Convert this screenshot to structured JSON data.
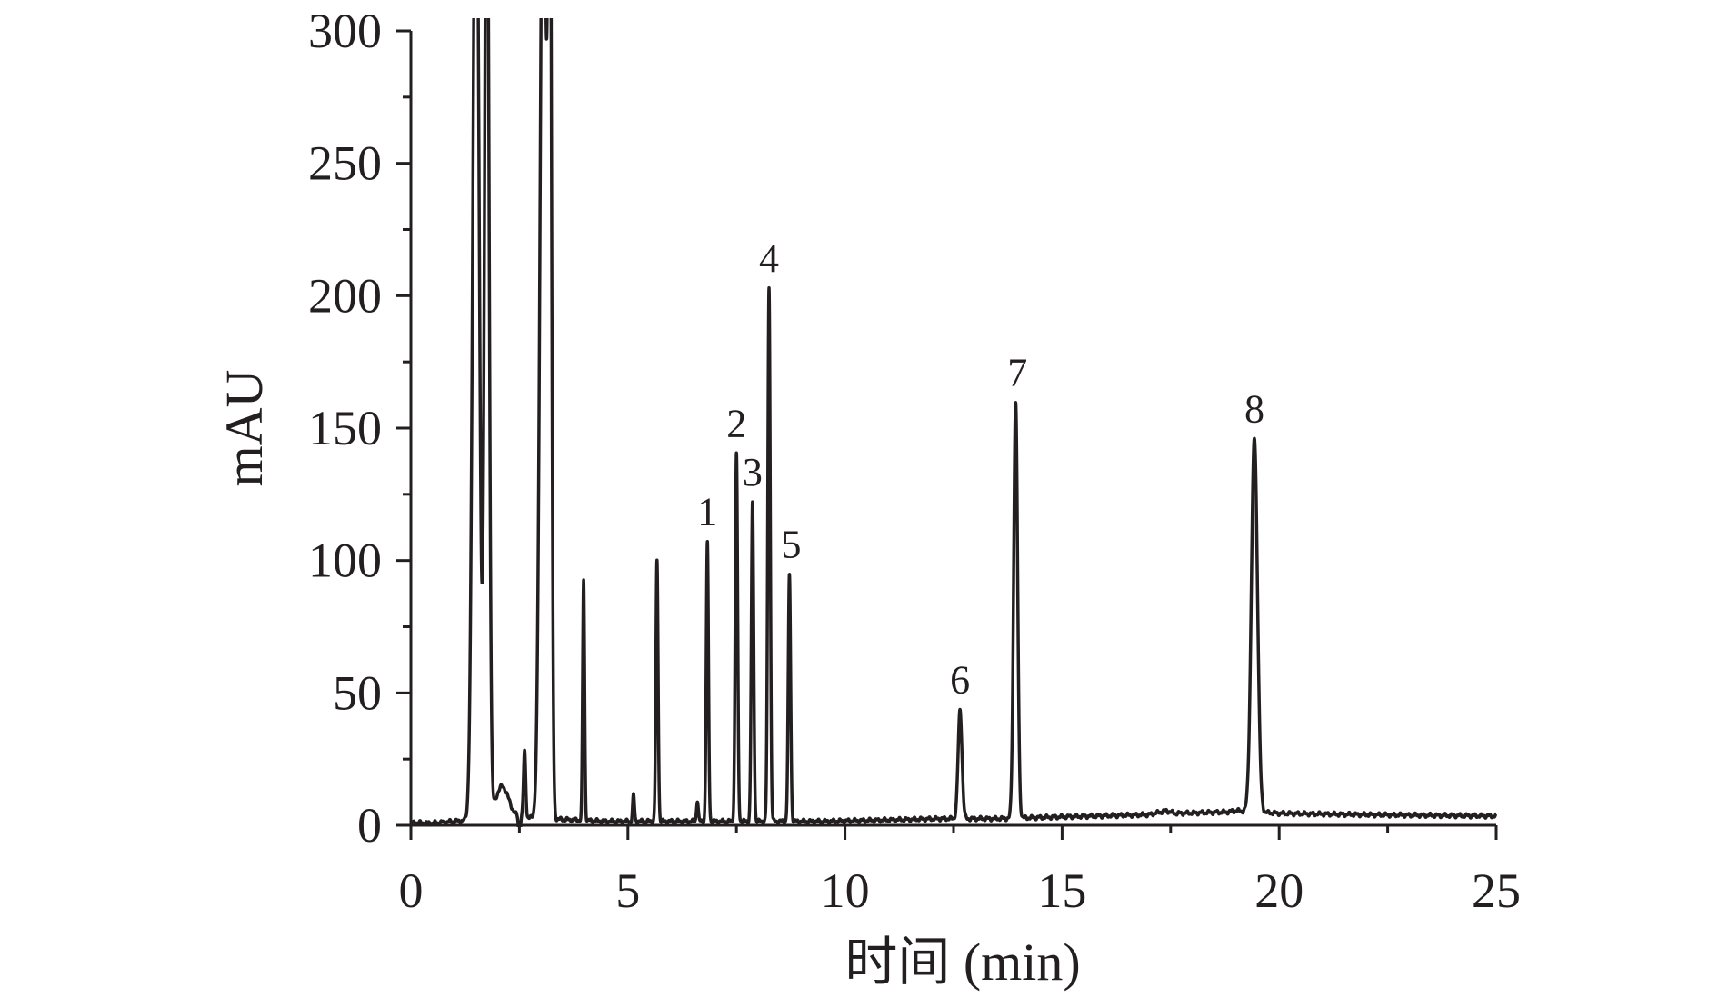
{
  "chart_data": {
    "type": "line",
    "title": "",
    "xlabel": "时间 (min)",
    "ylabel": "mAU",
    "xlim": [
      0,
      25
    ],
    "ylim": [
      0,
      300
    ],
    "x_major_ticks": [
      0,
      5,
      10,
      15,
      20,
      25
    ],
    "x_minor_step": 2.5,
    "y_major_ticks": [
      0,
      50,
      100,
      150,
      200,
      250,
      300
    ],
    "y_minor_step": 25,
    "grid": false,
    "legend": "none",
    "line_color": "#231f20",
    "baseline": [
      [
        0,
        1
      ],
      [
        0.5,
        0.8
      ],
      [
        1.0,
        1.5
      ],
      [
        2.4,
        3
      ],
      [
        4.5,
        1.5
      ],
      [
        8.0,
        1.5
      ],
      [
        9.5,
        1.5
      ],
      [
        11,
        2
      ],
      [
        12.2,
        2.5
      ],
      [
        13.5,
        2.5
      ],
      [
        15,
        3.2
      ],
      [
        17,
        4
      ],
      [
        17.4,
        5.5
      ],
      [
        17.6,
        4.5
      ],
      [
        18.8,
        5
      ],
      [
        19.0,
        5.5
      ],
      [
        20.0,
        4.5
      ],
      [
        22,
        4
      ],
      [
        25,
        3.5
      ]
    ],
    "peaks": [
      {
        "rt": 1.5,
        "height": 400,
        "width": 0.07,
        "label": ""
      },
      {
        "rt": 1.75,
        "height": 400,
        "width": 0.05,
        "label": ""
      },
      {
        "rt": 2.1,
        "height": 12,
        "width": 0.15,
        "label": ""
      },
      {
        "rt": 2.62,
        "height": 25,
        "width": 0.025,
        "label": ""
      },
      {
        "rt": 3.05,
        "height": 400,
        "width": 0.07,
        "label": ""
      },
      {
        "rt": 3.2,
        "height": 400,
        "width": 0.04,
        "label": ""
      },
      {
        "rt": 3.98,
        "height": 91,
        "width": 0.022,
        "label": ""
      },
      {
        "rt": 5.13,
        "height": 10,
        "width": 0.02,
        "label": ""
      },
      {
        "rt": 5.67,
        "height": 98,
        "width": 0.025,
        "label": ""
      },
      {
        "rt": 6.6,
        "height": 8,
        "width": 0.02,
        "label": ""
      },
      {
        "rt": 6.83,
        "height": 105,
        "width": 0.025,
        "label": "1"
      },
      {
        "rt": 7.5,
        "height": 139,
        "width": 0.027,
        "label": "2"
      },
      {
        "rt": 7.87,
        "height": 120,
        "width": 0.027,
        "label": "3"
      },
      {
        "rt": 8.25,
        "height": 202,
        "width": 0.028,
        "label": "4"
      },
      {
        "rt": 8.72,
        "height": 93,
        "width": 0.027,
        "label": "5"
      },
      {
        "rt": 12.65,
        "height": 41,
        "width": 0.045,
        "label": "6"
      },
      {
        "rt": 13.93,
        "height": 157,
        "width": 0.045,
        "label": "7"
      },
      {
        "rt": 19.43,
        "height": 141,
        "width": 0.07,
        "label": "8"
      }
    ],
    "dip": {
      "rt": 2.5,
      "depth": 8,
      "width": 0.02
    }
  }
}
